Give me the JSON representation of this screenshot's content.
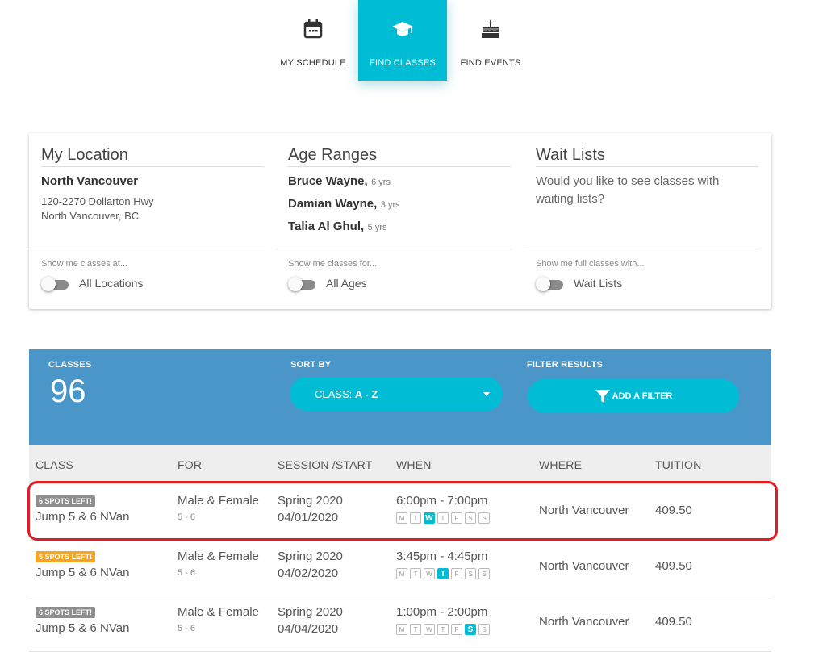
{
  "nav": [
    {
      "label": "MY SCHEDULE",
      "icon": "calendar-icon"
    },
    {
      "label": "FIND CLASSES",
      "icon": "graduation-cap-icon"
    },
    {
      "label": "FIND EVENTS",
      "icon": "birthday-cake-icon"
    }
  ],
  "prefs": {
    "location": {
      "title": "My Location",
      "name": "North Vancouver",
      "address1": "120-2270 Dollarton Hwy",
      "address2": "North Vancouver, BC",
      "caption": "Show me classes at...",
      "toggle_label": "All Locations"
    },
    "ages": {
      "title": "Age Ranges",
      "kids": [
        {
          "name": "Bruce Wayne,",
          "age": "6 yrs"
        },
        {
          "name": "Damian Wayne,",
          "age": "3 yrs"
        },
        {
          "name": "Talia Al Ghul,",
          "age": "5 yrs"
        }
      ],
      "caption": "Show me classes for...",
      "toggle_label": "All Ages"
    },
    "waitlists": {
      "title": "Wait Lists",
      "desc": "Would you like to see classes with waiting lists?",
      "caption": "Show me full classes with...",
      "toggle_label": "Wait Lists"
    }
  },
  "results": {
    "classes_caption": "CLASSES",
    "count": "96",
    "sort_caption": "SORT BY",
    "sort_prefix": "CLASS: ",
    "sort_value": "A - Z",
    "filter_caption": "FILTER RESULTS",
    "filter_label": "ADD A FILTER"
  },
  "table": {
    "headers": [
      "CLASS",
      "FOR",
      "SESSION /START",
      "WHEN",
      "WHERE",
      "TUITION"
    ],
    "days": [
      "M",
      "T",
      "W",
      "T",
      "F",
      "S",
      "S"
    ],
    "rows": [
      {
        "badge": "6 SPOTS LEFT!",
        "badge_color": "#8e8e8e",
        "name": "Jump 5 & 6 NVan",
        "for": "Male & Female",
        "ages": "5 - 6",
        "session": "Spring 2020",
        "start": "04/01/2020",
        "time": "6:00pm - 7:00pm",
        "active_day": 2,
        "where": "North Vancouver",
        "tuition": "409.50"
      },
      {
        "badge": "5 SPOTS LEFT!",
        "badge_color": "#f5a623",
        "name": "Jump 5 & 6 NVan",
        "for": "Male & Female",
        "ages": "5 - 6",
        "session": "Spring 2020",
        "start": "04/02/2020",
        "time": "3:45pm - 4:45pm",
        "active_day": 3,
        "where": "North Vancouver",
        "tuition": "409.50"
      },
      {
        "badge": "6 SPOTS LEFT!",
        "badge_color": "#8e8e8e",
        "name": "Jump 5 & 6 NVan",
        "for": "Male & Female",
        "ages": "5 - 6",
        "session": "Spring 2020",
        "start": "04/04/2020",
        "time": "1:00pm - 2:00pm",
        "active_day": 5,
        "where": "North Vancouver",
        "tuition": "409.50"
      }
    ]
  },
  "colors": {
    "accent": "#00bcd4",
    "header_bar": "#4a96c8",
    "highlight": "#e41c24"
  }
}
